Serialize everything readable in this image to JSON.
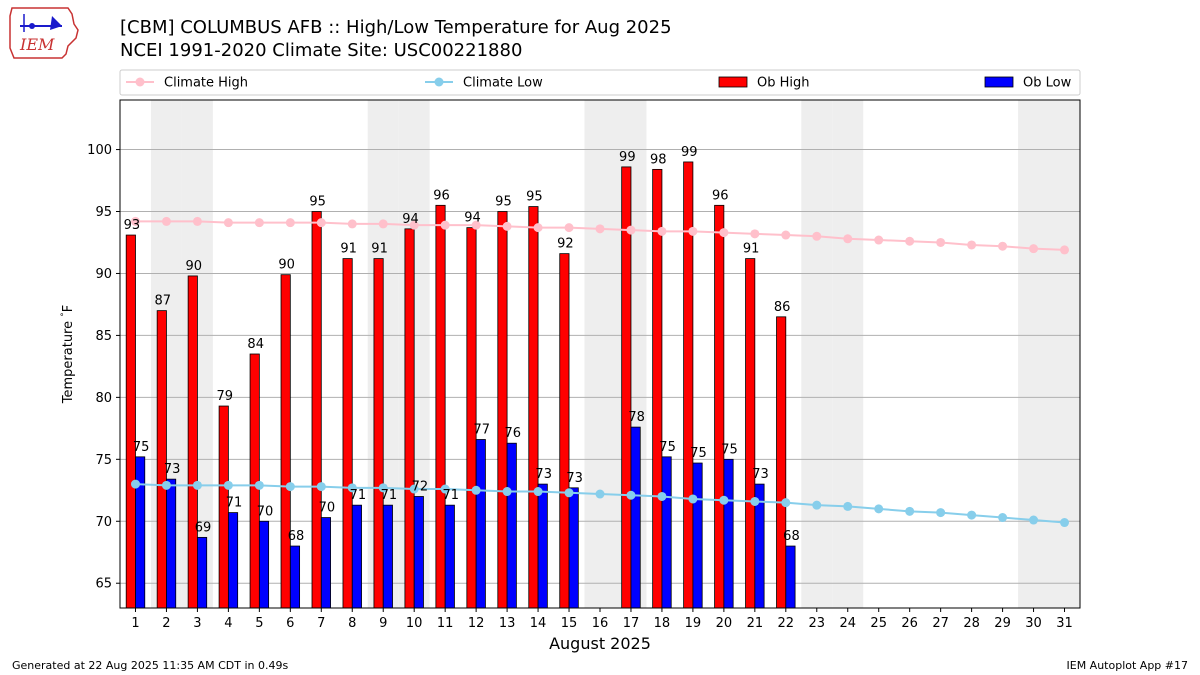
{
  "header": {
    "title_line1": "[CBM] COLUMBUS AFB :: High/Low Temperature for Aug 2025",
    "title_line2": "NCEI 1991-2020 Climate Site: USC00221880"
  },
  "logo": {
    "text": "IEM"
  },
  "footer": {
    "left": "Generated at 22 Aug 2025 11:35 AM CDT in 0.49s",
    "right": "IEM Autoplot App #17"
  },
  "colors": {
    "ob_high": "#ff0000",
    "ob_low": "#0000ff",
    "climate_high": "#ffc0cb",
    "climate_low": "#87ceeb",
    "weekend_band": "#eeeeee",
    "grid": "#b0b0b0"
  },
  "chart_data": {
    "type": "bar",
    "xlabel": "August 2025",
    "ylabel": "Temperature $^\\circ$F",
    "ylim": [
      63,
      104
    ],
    "yticks": [
      65,
      70,
      75,
      80,
      85,
      90,
      95,
      100
    ],
    "grid": "horizontal",
    "legend_placement": "top",
    "categories": [
      "1",
      "2",
      "3",
      "4",
      "5",
      "6",
      "7",
      "8",
      "9",
      "10",
      "11",
      "12",
      "13",
      "14",
      "15",
      "16",
      "17",
      "18",
      "19",
      "20",
      "21",
      "22",
      "23",
      "24",
      "25",
      "26",
      "27",
      "28",
      "29",
      "30",
      "31"
    ],
    "shaded_days": [
      2,
      3,
      9,
      10,
      16,
      17,
      23,
      24,
      30,
      31
    ],
    "legend": [
      {
        "label": "Climate High",
        "kind": "line",
        "key": "climate_high"
      },
      {
        "label": "Climate Low",
        "kind": "line",
        "key": "climate_low"
      },
      {
        "label": "Ob High",
        "kind": "bar",
        "key": "ob_high"
      },
      {
        "label": "Ob Low",
        "kind": "bar",
        "key": "ob_low"
      }
    ],
    "series": [
      {
        "name": "Ob High",
        "type": "bar",
        "values": [
          93.1,
          87.0,
          89.8,
          79.3,
          83.5,
          89.9,
          95.0,
          91.2,
          91.2,
          93.6,
          95.5,
          93.7,
          95.0,
          95.4,
          91.6,
          null,
          98.6,
          98.4,
          99.0,
          95.5,
          91.2,
          86.5,
          null,
          null,
          null,
          null,
          null,
          null,
          null,
          null,
          null
        ],
        "labels": [
          "93",
          "87",
          "90",
          "79",
          "84",
          "90",
          "95",
          "91",
          "91",
          "94",
          "96",
          "94",
          "95",
          "95",
          "92",
          "",
          "99",
          "98",
          "99",
          "96",
          "91",
          "86",
          "",
          "",
          "",
          "",
          "",
          "",
          "",
          "",
          ""
        ]
      },
      {
        "name": "Ob Low",
        "type": "bar",
        "values": [
          75.2,
          73.4,
          68.7,
          70.7,
          70.0,
          68.0,
          70.3,
          71.3,
          71.3,
          72.0,
          71.3,
          76.6,
          76.3,
          73.0,
          72.7,
          null,
          77.6,
          75.2,
          74.7,
          75.0,
          73.0,
          68.0,
          null,
          null,
          null,
          null,
          null,
          null,
          null,
          null,
          null
        ],
        "labels": [
          "75",
          "73",
          "69",
          "71",
          "70",
          "68",
          "70",
          "71",
          "71",
          "72",
          "71",
          "77",
          "76",
          "73",
          "73",
          "",
          "78",
          "75",
          "75",
          "75",
          "73",
          "68",
          "",
          "",
          "",
          "",
          "",
          "",
          "",
          "",
          ""
        ]
      },
      {
        "name": "Climate High",
        "type": "line",
        "values": [
          94.2,
          94.2,
          94.2,
          94.1,
          94.1,
          94.1,
          94.1,
          94.0,
          94.0,
          93.9,
          93.9,
          93.9,
          93.8,
          93.7,
          93.7,
          93.6,
          93.5,
          93.4,
          93.4,
          93.3,
          93.2,
          93.1,
          93.0,
          92.8,
          92.7,
          92.6,
          92.5,
          92.3,
          92.2,
          92.0,
          91.9
        ]
      },
      {
        "name": "Climate Low",
        "type": "line",
        "values": [
          73.0,
          72.9,
          72.9,
          72.9,
          72.9,
          72.8,
          72.8,
          72.7,
          72.7,
          72.6,
          72.6,
          72.5,
          72.4,
          72.4,
          72.3,
          72.2,
          72.1,
          72.0,
          71.8,
          71.7,
          71.6,
          71.5,
          71.3,
          71.2,
          71.0,
          70.8,
          70.7,
          70.5,
          70.3,
          70.1,
          69.9
        ]
      }
    ]
  }
}
